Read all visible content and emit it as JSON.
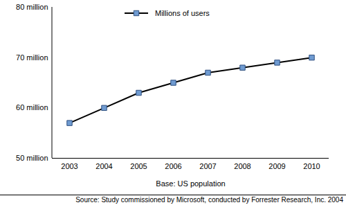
{
  "chart_data": {
    "type": "line",
    "xlabel": "Base: US population",
    "caption": "Source: Study commissioned by Microsoft, conducted by Forrester Research, Inc. 2004",
    "categories": [
      "2003",
      "2004",
      "2005",
      "2006",
      "2007",
      "2008",
      "2009",
      "2010"
    ],
    "series": [
      {
        "name": "Millions of users",
        "color": "#6f9bd1",
        "marker": "square",
        "values": [
          57,
          60,
          63,
          65,
          67,
          68,
          69,
          70
        ]
      }
    ],
    "ylim": [
      50,
      80
    ],
    "yticks": [
      {
        "value": 50,
        "label": "50 million"
      },
      {
        "value": 60,
        "label": "60 million"
      },
      {
        "value": 70,
        "label": "70 million"
      },
      {
        "value": 80,
        "label": "80 million"
      }
    ],
    "grid": false
  }
}
